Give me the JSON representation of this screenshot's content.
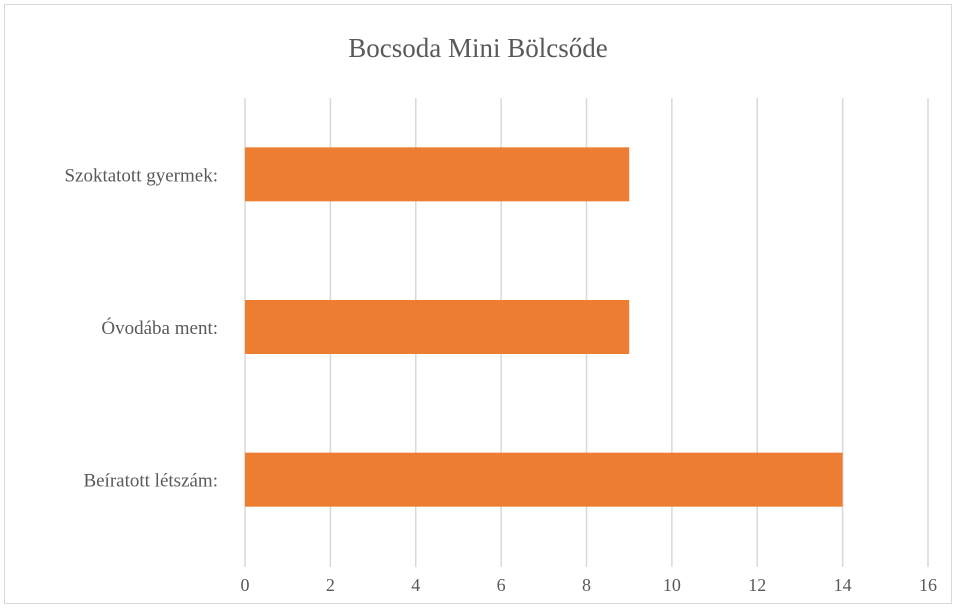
{
  "chart_data": {
    "type": "bar",
    "orientation": "horizontal",
    "title": "Bocsoda Mini Bölcsőde",
    "categories": [
      "Szoktatott gyermek:",
      "Óvodába ment:",
      "Beíratott létszám:"
    ],
    "series": [
      {
        "values": [
          9,
          9,
          14
        ],
        "color": "#ED7D31"
      }
    ],
    "xlim": [
      0,
      16
    ],
    "xticks": [
      "0",
      "2",
      "4",
      "6",
      "8",
      "10",
      "12",
      "14",
      "16"
    ],
    "grid": "vertical",
    "legend": "none"
  }
}
